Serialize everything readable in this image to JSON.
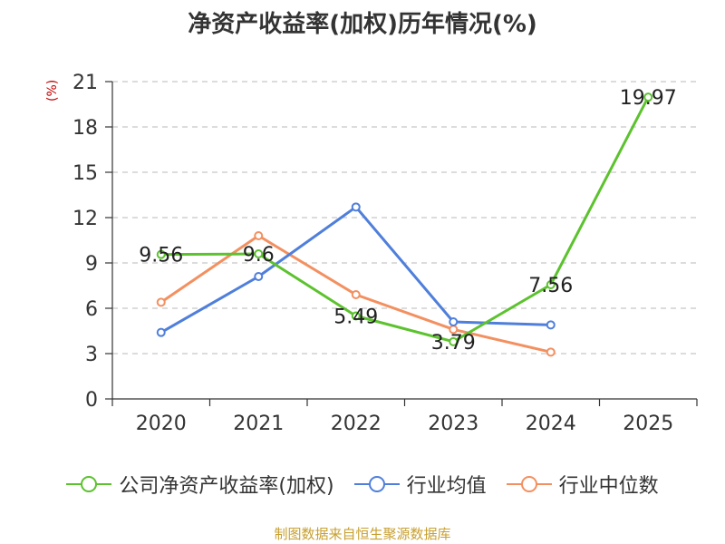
{
  "chart_data": {
    "type": "line",
    "title": "净资产收益率(加权)历年情况(%)",
    "ylabel": "(%)",
    "xlabel": "",
    "categories": [
      "2020",
      "2021",
      "2022",
      "2023",
      "2024",
      "2025"
    ],
    "ylim": [
      0,
      21
    ],
    "yticks": [
      0,
      3,
      6,
      9,
      12,
      15,
      18,
      21
    ],
    "grid": true,
    "legend_position": "bottom",
    "series": [
      {
        "name": "公司净资产收益率(加权)",
        "color": "#5cc22e",
        "values": [
          9.56,
          9.6,
          5.49,
          3.79,
          7.56,
          19.97
        ],
        "labels": [
          "9.56",
          "9.6",
          "5.49",
          "3.79",
          "7.56",
          "19.97"
        ]
      },
      {
        "name": "行业均值",
        "color": "#4f7fdb",
        "values": [
          4.4,
          8.1,
          12.7,
          5.1,
          4.9,
          null
        ]
      },
      {
        "name": "行业中位数",
        "color": "#f39060",
        "values": [
          6.4,
          10.8,
          6.9,
          4.6,
          3.1,
          null
        ]
      }
    ]
  },
  "source": "制图数据来自恒生聚源数据库"
}
